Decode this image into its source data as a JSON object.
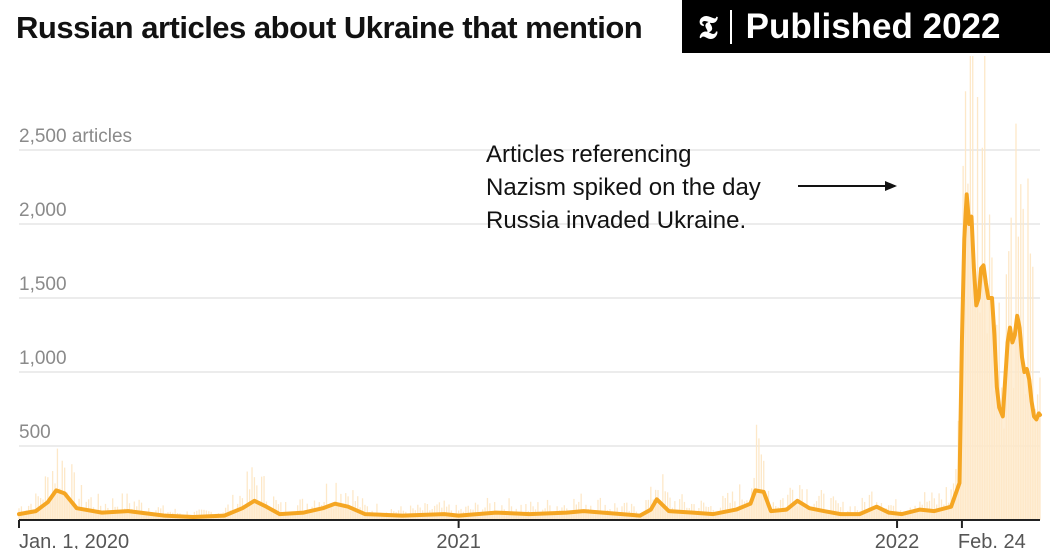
{
  "header": {
    "title": "Russian articles about Ukraine that mention",
    "badge_logo": "𝕿",
    "badge_text": "Published 2022"
  },
  "annotation": {
    "lines": [
      "Articles referencing",
      "Nazism spiked on the day",
      "Russia invaded Ukraine."
    ]
  },
  "colors": {
    "line": "#f5a623",
    "area": "#fde8c8",
    "grid": "#e6e6e6",
    "axis": "#222222"
  },
  "chart_data": {
    "type": "area",
    "title": "Russian articles about Ukraine that mention",
    "y_unit_label": "2,500 articles",
    "y_ticks": [
      {
        "value": 500,
        "label": "500"
      },
      {
        "value": 1000,
        "label": "1,000"
      },
      {
        "value": 1500,
        "label": "1,500"
      },
      {
        "value": 2000,
        "label": "2,000"
      },
      {
        "value": 2500,
        "label": "2,500 articles"
      }
    ],
    "ylim": [
      0,
      3000
    ],
    "xlim": [
      "2020-01-01",
      "2022-04-30"
    ],
    "x_ticks": [
      {
        "date": "2020-01-01",
        "label": "Jan. 1, 2020"
      },
      {
        "date": "2021-01-01",
        "label": "2021"
      },
      {
        "date": "2022-01-01",
        "label": "2022"
      },
      {
        "date": "2022-02-24",
        "label": "Feb. 24"
      }
    ],
    "series": [
      {
        "type": "line",
        "points": [
          [
            "2020-01-01",
            40
          ],
          [
            "2020-01-15",
            60
          ],
          [
            "2020-01-25",
            120
          ],
          [
            "2020-02-01",
            200
          ],
          [
            "2020-02-08",
            180
          ],
          [
            "2020-02-18",
            80
          ],
          [
            "2020-03-10",
            50
          ],
          [
            "2020-04-01",
            60
          ],
          [
            "2020-05-01",
            30
          ],
          [
            "2020-05-25",
            20
          ],
          [
            "2020-06-20",
            30
          ],
          [
            "2020-07-05",
            80
          ],
          [
            "2020-07-15",
            130
          ],
          [
            "2020-07-25",
            90
          ],
          [
            "2020-08-05",
            40
          ],
          [
            "2020-08-25",
            50
          ],
          [
            "2020-09-10",
            80
          ],
          [
            "2020-09-20",
            110
          ],
          [
            "2020-10-01",
            90
          ],
          [
            "2020-10-15",
            40
          ],
          [
            "2020-11-15",
            30
          ],
          [
            "2020-12-20",
            40
          ],
          [
            "2021-01-01",
            30
          ],
          [
            "2021-02-01",
            50
          ],
          [
            "2021-03-01",
            40
          ],
          [
            "2021-04-01",
            50
          ],
          [
            "2021-04-15",
            60
          ],
          [
            "2021-05-01",
            50
          ],
          [
            "2021-06-01",
            30
          ],
          [
            "2021-06-10",
            70
          ],
          [
            "2021-06-15",
            140
          ],
          [
            "2021-06-25",
            60
          ],
          [
            "2021-07-15",
            50
          ],
          [
            "2021-08-01",
            40
          ],
          [
            "2021-08-20",
            70
          ],
          [
            "2021-09-01",
            110
          ],
          [
            "2021-09-05",
            200
          ],
          [
            "2021-09-12",
            190
          ],
          [
            "2021-09-18",
            60
          ],
          [
            "2021-10-01",
            70
          ],
          [
            "2021-10-10",
            130
          ],
          [
            "2021-10-20",
            80
          ],
          [
            "2021-11-01",
            60
          ],
          [
            "2021-11-15",
            40
          ],
          [
            "2021-12-01",
            40
          ],
          [
            "2021-12-15",
            90
          ],
          [
            "2021-12-25",
            50
          ],
          [
            "2022-01-05",
            40
          ],
          [
            "2022-01-20",
            70
          ],
          [
            "2022-02-01",
            60
          ],
          [
            "2022-02-15",
            90
          ],
          [
            "2022-02-22",
            250
          ],
          [
            "2022-02-24",
            1200
          ],
          [
            "2022-02-26",
            1900
          ],
          [
            "2022-02-28",
            2200
          ],
          [
            "2022-03-02",
            2000
          ],
          [
            "2022-03-04",
            2050
          ],
          [
            "2022-03-06",
            1700
          ],
          [
            "2022-03-08",
            1450
          ],
          [
            "2022-03-10",
            1500
          ],
          [
            "2022-03-12",
            1700
          ],
          [
            "2022-03-14",
            1720
          ],
          [
            "2022-03-16",
            1600
          ],
          [
            "2022-03-18",
            1500
          ],
          [
            "2022-03-21",
            1500
          ],
          [
            "2022-03-23",
            1250
          ],
          [
            "2022-03-25",
            900
          ],
          [
            "2022-03-27",
            760
          ],
          [
            "2022-03-30",
            700
          ],
          [
            "2022-04-01",
            950
          ],
          [
            "2022-04-03",
            1200
          ],
          [
            "2022-04-05",
            1300
          ],
          [
            "2022-04-07",
            1200
          ],
          [
            "2022-04-09",
            1250
          ],
          [
            "2022-04-11",
            1380
          ],
          [
            "2022-04-13",
            1300
          ],
          [
            "2022-04-15",
            1100
          ],
          [
            "2022-04-17",
            1000
          ],
          [
            "2022-04-19",
            1020
          ],
          [
            "2022-04-21",
            950
          ],
          [
            "2022-04-23",
            800
          ],
          [
            "2022-04-25",
            700
          ],
          [
            "2022-04-27",
            680
          ],
          [
            "2022-04-29",
            720
          ],
          [
            "2022-04-30",
            710
          ]
        ]
      }
    ]
  }
}
